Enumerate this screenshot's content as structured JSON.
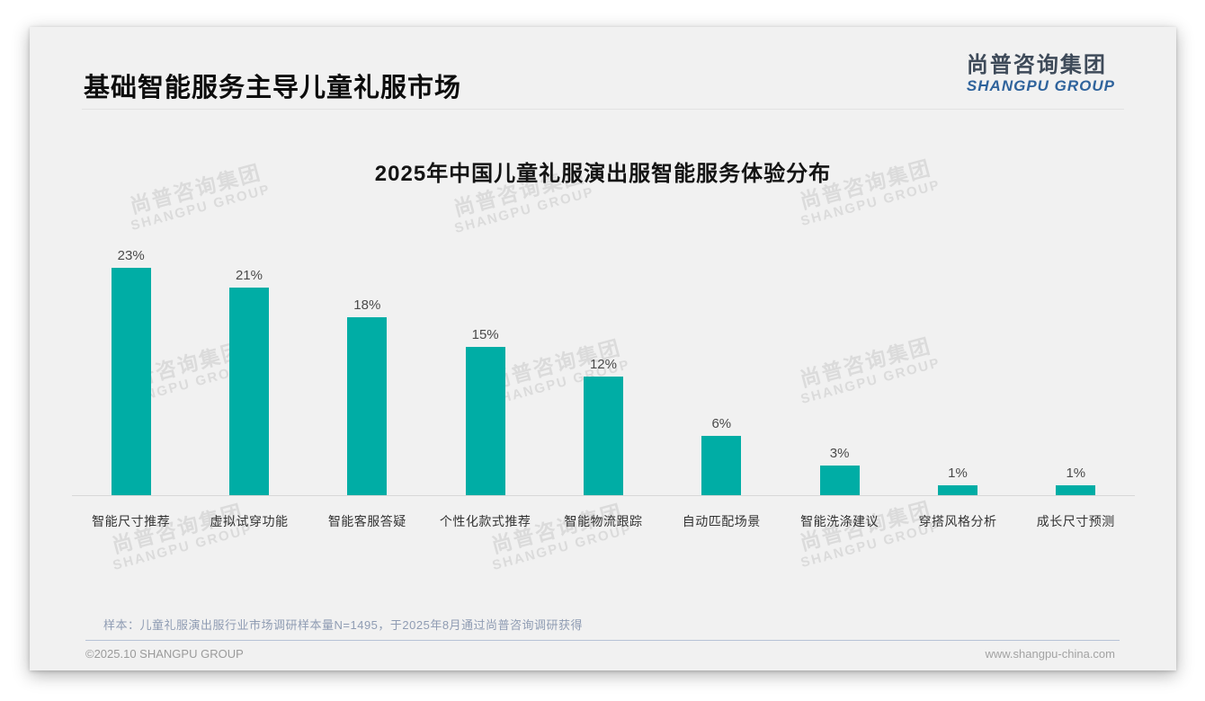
{
  "header": {
    "title": "基础智能服务主导儿童礼服市场",
    "logo_cn": "尚普咨询集团",
    "logo_en": "SHANGPU GROUP"
  },
  "chart_data": {
    "type": "bar",
    "title": "2025年中国儿童礼服演出服智能服务体验分布",
    "categories": [
      "智能尺寸推荐",
      "虚拟试穿功能",
      "智能客服答疑",
      "个性化款式推荐",
      "智能物流跟踪",
      "自动匹配场景",
      "智能洗涤建议",
      "穿搭风格分析",
      "成长尺寸预测"
    ],
    "values": [
      23,
      21,
      18,
      15,
      12,
      6,
      3,
      1,
      1
    ],
    "unit": "%",
    "value_labels": [
      "23%",
      "21%",
      "18%",
      "15%",
      "12%",
      "6%",
      "3%",
      "1%",
      "1%"
    ],
    "bar_color": "#00ADA5",
    "xlabel": "",
    "ylabel": "",
    "ylim": [
      0,
      25
    ],
    "grid": false,
    "legend": "none",
    "data_labels_position": "above bars"
  },
  "watermark": {
    "line1": "尚普咨询集团",
    "line2": "SHANGPU GROUP"
  },
  "note": "样本：儿童礼服演出服行业市场调研样本量N=1495，于2025年8月通过尚普咨询调研获得",
  "footer": {
    "left": "©2025.10 SHANGPU GROUP",
    "right": "www.shangpu-china.com"
  }
}
